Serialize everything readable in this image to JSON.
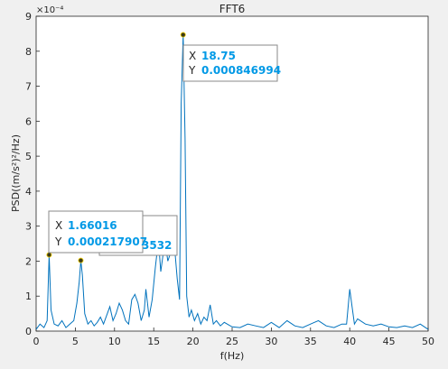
{
  "chart_data": {
    "type": "line",
    "title": "FFT6",
    "xlabel": "f(Hz)",
    "ylabel": "PSD((m/s²)²/Hz)",
    "y_exponent_label": "×10⁻⁴",
    "xlim": [
      0,
      50
    ],
    "ylim": [
      0,
      9
    ],
    "xticks": [
      0,
      5,
      10,
      15,
      20,
      25,
      30,
      35,
      40,
      45,
      50
    ],
    "yticks": [
      0,
      1,
      2,
      3,
      4,
      5,
      6,
      7,
      8,
      9
    ],
    "grid": false,
    "line_color": "#0072bd",
    "series": [
      {
        "x": [
          0,
          0.5,
          1.0,
          1.4,
          1.66,
          1.9,
          2.3,
          2.8,
          3.3,
          3.8,
          4.3,
          4.8,
          5.2,
          5.5,
          5.7,
          5.9,
          6.2,
          6.6,
          7.0,
          7.4,
          7.8,
          8.2,
          8.6,
          9.0,
          9.4,
          9.8,
          10.2,
          10.6,
          11.0,
          11.4,
          11.8,
          12.2,
          12.6,
          13.0,
          13.4,
          13.8,
          14.0,
          14.2,
          14.4,
          14.8,
          15.2,
          15.6,
          15.9,
          16.2,
          16.5,
          16.8,
          17.1,
          17.4,
          17.7,
          18.0,
          18.3,
          18.5,
          18.75,
          19.0,
          19.2,
          19.5,
          19.8,
          20.2,
          20.6,
          21.0,
          21.4,
          21.8,
          22.2,
          22.6,
          23.0,
          23.5,
          24.0,
          25.0,
          26.0,
          27.0,
          28.0,
          29.0,
          30.0,
          31.0,
          32.0,
          33.0,
          34.0,
          35.0,
          36.0,
          37.0,
          38.0,
          39.0,
          39.6,
          40.0,
          40.3,
          40.6,
          41.0,
          42.0,
          43.0,
          44.0,
          45.0,
          46.0,
          47.0,
          48.0,
          49.0,
          50.0
        ],
        "y": [
          0.05,
          0.2,
          0.1,
          0.3,
          2.18,
          0.6,
          0.2,
          0.15,
          0.3,
          0.1,
          0.2,
          0.3,
          0.8,
          1.4,
          2.02,
          1.6,
          0.5,
          0.2,
          0.3,
          0.15,
          0.25,
          0.4,
          0.2,
          0.45,
          0.7,
          0.3,
          0.5,
          0.8,
          0.6,
          0.3,
          0.2,
          0.9,
          1.05,
          0.8,
          0.3,
          0.6,
          1.2,
          0.8,
          0.4,
          0.9,
          1.8,
          2.6,
          1.7,
          2.2,
          2.5,
          2.0,
          2.2,
          2.6,
          2.3,
          1.5,
          0.9,
          6.5,
          8.47,
          5.5,
          1.0,
          0.4,
          0.6,
          0.3,
          0.5,
          0.2,
          0.4,
          0.3,
          0.75,
          0.2,
          0.3,
          0.15,
          0.25,
          0.12,
          0.1,
          0.2,
          0.15,
          0.1,
          0.25,
          0.1,
          0.3,
          0.15,
          0.1,
          0.2,
          0.3,
          0.15,
          0.1,
          0.2,
          0.2,
          1.2,
          0.7,
          0.2,
          0.35,
          0.2,
          0.15,
          0.2,
          0.12,
          0.1,
          0.15,
          0.1,
          0.2,
          0.05
        ]
      }
    ],
    "datatips": [
      {
        "x": 1.66,
        "y": 0.000217907,
        "x_label": "1.66016",
        "y_label": "0.000217907"
      },
      {
        "x": 5.7,
        "y": 0.000202,
        "x_label": "",
        "y_label": "",
        "partial_label": "3532"
      },
      {
        "x": 18.75,
        "y": 0.000846994,
        "x_label": "18.75",
        "y_label": "0.000846994"
      }
    ],
    "tip_keys": {
      "x": "X",
      "y": "Y"
    }
  }
}
